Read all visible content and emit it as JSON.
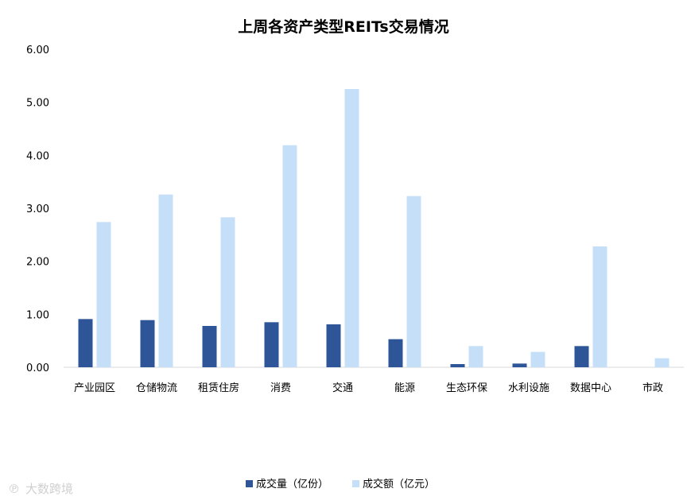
{
  "chart_data": {
    "type": "bar",
    "title": "上周各资产类型REITs交易情况",
    "categories": [
      "产业园区",
      "仓储物流",
      "租赁住房",
      "消费",
      "交通",
      "能源",
      "生态环保",
      "水利设施",
      "数据中心",
      "市政"
    ],
    "series": [
      {
        "name": "成交量（亿份）",
        "color": "#2e5597",
        "values": [
          0.91,
          0.89,
          0.78,
          0.85,
          0.81,
          0.53,
          0.06,
          0.07,
          0.4,
          0.0
        ]
      },
      {
        "name": "成交额（亿元）",
        "color": "#c5dff8",
        "values": [
          2.74,
          3.26,
          2.83,
          4.19,
          5.25,
          3.23,
          0.4,
          0.29,
          2.28,
          0.17
        ]
      }
    ],
    "yticks": [
      "0.00",
      "1.00",
      "2.00",
      "3.00",
      "4.00",
      "5.00",
      "6.00"
    ],
    "ylim": [
      0,
      6
    ],
    "grid": false,
    "legend_position": "bottom"
  },
  "watermark": {
    "text": "大数跨境"
  }
}
